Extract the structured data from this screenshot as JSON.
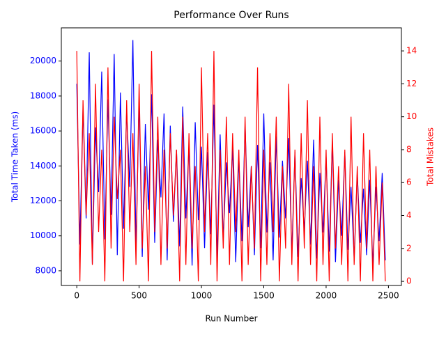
{
  "chart_data": {
    "type": "line",
    "title": "Performance Over Runs",
    "xlabel": "Run Number",
    "ylabel": "Total Time Taken (ms)",
    "y2label": "Total Mistakes",
    "x": [
      0,
      25,
      50,
      75,
      100,
      125,
      150,
      175,
      200,
      225,
      250,
      275,
      300,
      325,
      350,
      375,
      400,
      425,
      450,
      475,
      500,
      525,
      550,
      575,
      600,
      625,
      650,
      675,
      700,
      725,
      750,
      775,
      800,
      825,
      850,
      875,
      900,
      925,
      950,
      975,
      1000,
      1025,
      1050,
      1075,
      1100,
      1125,
      1150,
      1175,
      1200,
      1225,
      1250,
      1275,
      1300,
      1325,
      1350,
      1375,
      1400,
      1425,
      1450,
      1475,
      1500,
      1525,
      1550,
      1575,
      1600,
      1625,
      1650,
      1675,
      1700,
      1725,
      1750,
      1775,
      1800,
      1825,
      1850,
      1875,
      1900,
      1925,
      1950,
      1975,
      2000,
      2025,
      2050,
      2075,
      2100,
      2125,
      2150,
      2175,
      2200,
      2225,
      2250,
      2275,
      2300,
      2325,
      2350,
      2375,
      2400,
      2425,
      2450,
      2475
    ],
    "series": [
      {
        "name": "Total Time Taken (ms)",
        "color": "#0000ff",
        "axis": "y",
        "values": [
          18700,
          9500,
          17300,
          11000,
          20500,
          8400,
          16200,
          12500,
          19400,
          9800,
          17800,
          11200,
          20400,
          8900,
          18200,
          10400,
          17200,
          12800,
          21200,
          9200,
          17800,
          8800,
          16400,
          11500,
          18100,
          9600,
          15500,
          12200,
          17000,
          8600,
          16300,
          10800,
          14900,
          9400,
          17400,
          11000,
          15200,
          8300,
          16500,
          10900,
          15100,
          9300,
          14800,
          10100,
          17500,
          8700,
          15800,
          9800,
          14200,
          11300,
          15000,
          8500,
          14500,
          9700,
          16400,
          10500,
          14000,
          8900,
          15200,
          9300,
          17000,
          10200,
          14200,
          8600,
          15700,
          9900,
          14300,
          11000,
          15600,
          9000,
          14800,
          8800,
          13300,
          10300,
          14300,
          9500,
          15500,
          8700,
          13600,
          10200,
          14500,
          9100,
          15400,
          8500,
          13200,
          10000,
          14800,
          9200,
          12800,
          8700,
          13600,
          9600,
          12700,
          8900,
          13200,
          8300,
          12800,
          9700,
          13600,
          8600
        ]
      },
      {
        "name": "Total Mistakes",
        "color": "#ff0000",
        "axis": "y2",
        "values": [
          14,
          0,
          11,
          4,
          9,
          1,
          12,
          3,
          8,
          0,
          13,
          2,
          10,
          5,
          8,
          0,
          11,
          3,
          9,
          1,
          12,
          2,
          7,
          0,
          14,
          3,
          10,
          1,
          8,
          2,
          9,
          4,
          8,
          0,
          10,
          1,
          9,
          2,
          7,
          0,
          13,
          3,
          9,
          1,
          14,
          0,
          8,
          2,
          10,
          1,
          9,
          3,
          8,
          0,
          10,
          1,
          7,
          2,
          13,
          0,
          8,
          1,
          9,
          3,
          10,
          0,
          7,
          2,
          12,
          1,
          8,
          0,
          9,
          2,
          11,
          1,
          7,
          0,
          10,
          1,
          8,
          0,
          9,
          2,
          7,
          1,
          8,
          0,
          10,
          1,
          7,
          0,
          9,
          2,
          8,
          0,
          7,
          1,
          6,
          0
        ]
      }
    ],
    "xlim": [
      -124,
      2604
    ],
    "xticks": [
      0,
      500,
      1000,
      1500,
      2000,
      2500
    ],
    "ylim": [
      7160,
      21900
    ],
    "yticks": [
      8000,
      10000,
      12000,
      14000,
      16000,
      18000,
      20000
    ],
    "y2lim": [
      -0.25,
      15.4
    ],
    "y2ticks": [
      0,
      2,
      4,
      6,
      8,
      10,
      12,
      14
    ]
  }
}
